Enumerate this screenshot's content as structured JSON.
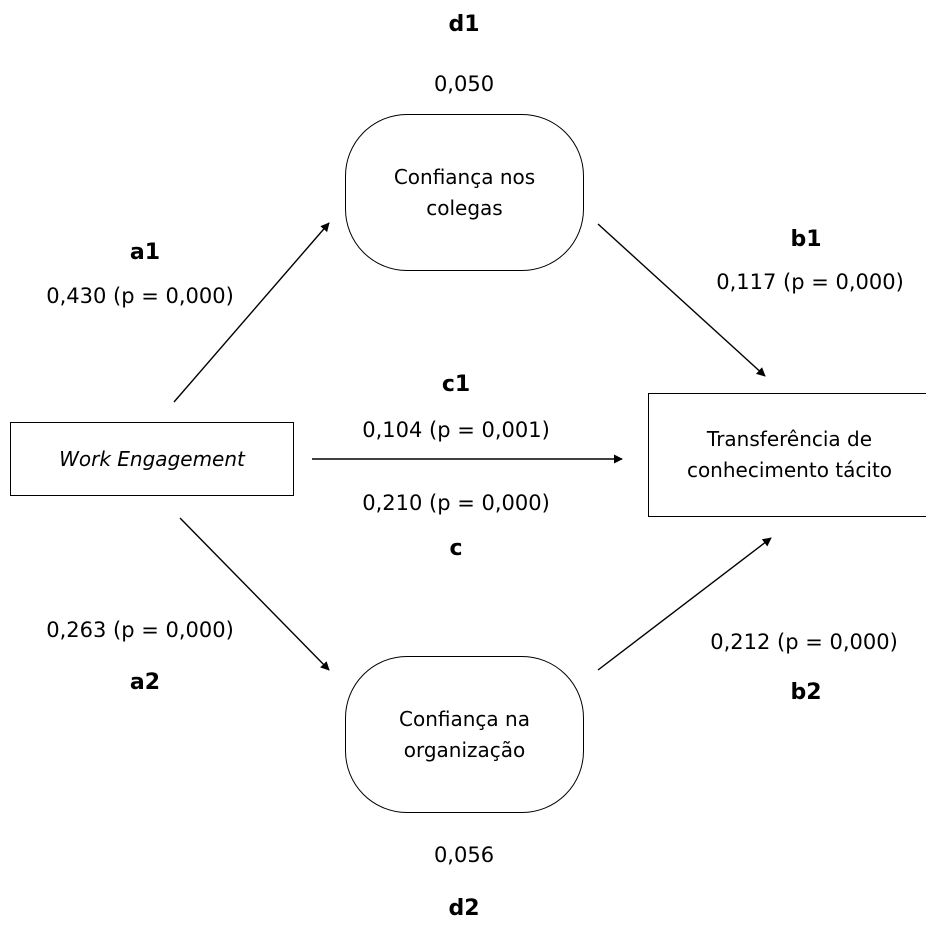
{
  "nodes": {
    "work_engagement": {
      "label": "Work Engagement"
    },
    "confianca_colegas": {
      "line1": "Confiança nos",
      "line2": "colegas"
    },
    "confianca_organizacao": {
      "line1": "Confiança na",
      "line2": "organização"
    },
    "transferencia": {
      "line1": "Transferência de",
      "line2": "conhecimento tácito"
    }
  },
  "paths": {
    "a1": {
      "name": "a1",
      "value": "0,430 (p = 0,000)"
    },
    "b1": {
      "name": "b1",
      "value": "0,117 (p = 0,000)"
    },
    "c1": {
      "name": "c1",
      "value": "0,104 (p = 0,001)"
    },
    "c": {
      "name": "c",
      "value": "0,210 (p = 0,000)"
    },
    "a2": {
      "name": "a2",
      "value": "0,263 (p = 0,000)"
    },
    "b2": {
      "name": "b2",
      "value": "0,212 (p = 0,000)"
    },
    "d1": {
      "name": "d1",
      "value": "0,050"
    },
    "d2": {
      "name": "d2",
      "value": "0,056"
    }
  }
}
